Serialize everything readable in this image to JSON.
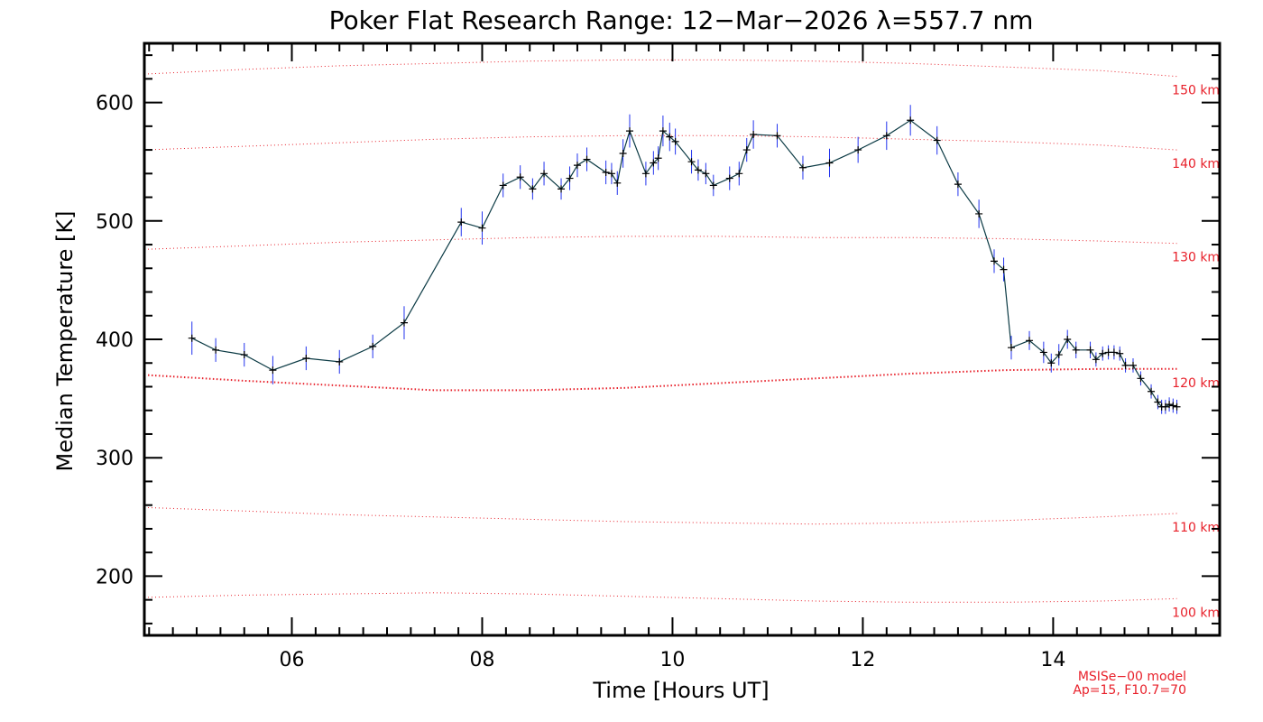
{
  "chart_data": {
    "type": "line",
    "title": "Poker Flat Research Range: 12−Mar−2026 λ=557.7 nm",
    "xlabel": "Time [Hours UT]",
    "ylabel": "Median Temperature [K]",
    "xlim": [
      4.45,
      15.75
    ],
    "ylim": [
      150,
      650
    ],
    "xticks": [
      6,
      8,
      10,
      12,
      14
    ],
    "xtick_labels": [
      "06",
      "08",
      "10",
      "12",
      "14"
    ],
    "yticks": [
      200,
      300,
      400,
      500,
      600
    ],
    "ytick_labels": [
      "200",
      "300",
      "400",
      "500",
      "600"
    ],
    "grid": false,
    "colors": {
      "series": "#0b3a44",
      "marker": "#000000",
      "error_bar": "#2233ee",
      "model": "#e8202a"
    },
    "series": [
      {
        "x": [
          4.95,
          5.2,
          5.5,
          5.8,
          6.15,
          6.5,
          6.85,
          7.18,
          7.78,
          8.0,
          8.22,
          8.4,
          8.53,
          8.65,
          8.83,
          8.92,
          9.0,
          9.1,
          9.3,
          9.36,
          9.42,
          9.48,
          9.55,
          9.72,
          9.8,
          9.85,
          9.9,
          9.97,
          10.03,
          10.2,
          10.27,
          10.35,
          10.43,
          10.6,
          10.7,
          10.78,
          10.85,
          11.1,
          11.37,
          11.65,
          11.95,
          12.25,
          12.5,
          12.78,
          13.0,
          13.22,
          13.38,
          13.48,
          13.56,
          13.75,
          13.9,
          13.98,
          14.06,
          14.15,
          14.24,
          14.39,
          14.45,
          14.52,
          14.58,
          14.64,
          14.7,
          14.76,
          14.84,
          14.92,
          15.03,
          15.1,
          15.14,
          15.18,
          15.22,
          15.26,
          15.3
        ],
        "y": [
          401,
          391,
          387,
          374,
          384,
          381,
          394,
          414,
          499,
          494,
          530,
          537,
          527,
          540,
          527,
          536,
          547,
          552,
          541,
          540,
          532,
          557,
          576,
          540,
          549,
          553,
          576,
          571,
          567,
          550,
          543,
          540,
          530,
          536,
          540,
          560,
          573,
          572,
          545,
          549,
          560,
          572,
          585,
          568,
          531,
          506,
          466,
          459,
          393,
          399,
          389,
          380,
          387,
          400,
          391,
          391,
          383,
          388,
          389,
          389,
          388,
          378,
          378,
          367,
          356,
          347,
          343,
          343,
          345,
          344,
          343
        ],
        "error": [
          14,
          10,
          10,
          12,
          10,
          10,
          10,
          14,
          12,
          14,
          10,
          10,
          9,
          10,
          9,
          10,
          10,
          10,
          10,
          9,
          10,
          12,
          14,
          10,
          10,
          10,
          13,
          12,
          11,
          10,
          9,
          9,
          9,
          10,
          10,
          10,
          12,
          10,
          10,
          12,
          11,
          12,
          13,
          12,
          10,
          12,
          10,
          10,
          10,
          8,
          9,
          8,
          9,
          8,
          7,
          7,
          6,
          6,
          6,
          6,
          6,
          6,
          6,
          6,
          6,
          6,
          6,
          6,
          6,
          6,
          6
        ]
      }
    ],
    "model": {
      "name": "MSISe−00 model",
      "params": "Ap=15, F10.7=70",
      "x": [
        4.45,
        5.5,
        6.5,
        7.5,
        8.5,
        9.5,
        10.5,
        11.5,
        12.5,
        13.5,
        14.5,
        15.3
      ],
      "levels": [
        {
          "label": "100 km",
          "values": [
            182,
            184,
            185,
            186,
            185,
            183,
            181,
            179,
            178,
            178,
            179,
            181
          ],
          "emphasized": false
        },
        {
          "label": "110 km",
          "values": [
            258,
            255,
            252,
            250,
            248,
            246,
            245,
            244,
            245,
            247,
            250,
            253
          ],
          "emphasized": false
        },
        {
          "label": "120 km",
          "values": [
            370,
            365,
            361,
            357,
            357,
            359,
            363,
            367,
            371,
            374,
            375,
            375
          ],
          "emphasized": true
        },
        {
          "label": "130 km",
          "values": [
            476,
            479,
            482,
            484,
            486,
            487,
            487,
            486,
            486,
            485,
            483,
            481
          ],
          "emphasized": false
        },
        {
          "label": "140 km",
          "values": [
            560,
            563,
            566,
            569,
            571,
            572,
            572,
            571,
            569,
            567,
            564,
            560
          ],
          "emphasized": false
        },
        {
          "label": "150 km",
          "values": [
            624,
            628,
            631,
            633,
            635,
            636,
            636,
            635,
            633,
            630,
            627,
            622
          ],
          "emphasized": false
        }
      ]
    }
  }
}
